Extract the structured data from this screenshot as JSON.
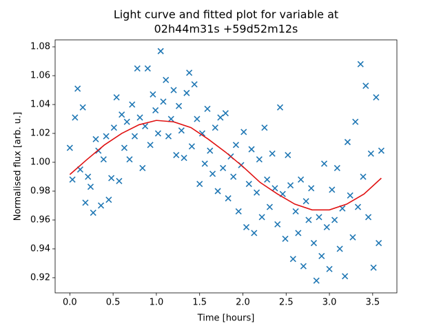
{
  "chart_data": {
    "type": "scatter",
    "title": [
      "Light curve and fitted plot for variable at",
      "02h44m31s +59d52m12s"
    ],
    "xlabel": "Time [hours]",
    "ylabel": "Normalised flux [arb. u.]",
    "xlim": [
      -0.17,
      3.78
    ],
    "ylim": [
      0.9095,
      1.0848
    ],
    "xticks": [
      {
        "value": 0,
        "label": "0.0"
      },
      0.5,
      {
        "value": 1,
        "label": "1.0"
      },
      1.5,
      {
        "value": 2,
        "label": "2.0"
      },
      2.5,
      {
        "value": 3,
        "label": "3.0"
      },
      3.5
    ],
    "yticks": [
      0.92,
      0.94,
      0.96,
      0.98,
      {
        "value": 1,
        "label": "1.00"
      },
      1.02,
      1.04,
      1.06,
      1.08
    ],
    "series": [
      {
        "type": "scatter",
        "marker": "x",
        "color": "#1f77b4",
        "x": [
          0,
          0.03,
          0.06,
          0.09,
          0.12,
          0.15,
          0.18,
          0.21,
          0.24,
          0.27,
          0.3,
          0.33,
          0.36,
          0.39,
          0.42,
          0.45,
          0.48,
          0.51,
          0.54,
          0.57,
          0.6,
          0.63,
          0.66,
          0.69,
          0.72,
          0.75,
          0.78,
          0.81,
          0.84,
          0.87,
          0.9,
          0.93,
          0.96,
          0.99,
          1.02,
          1.05,
          1.08,
          1.11,
          1.14,
          1.17,
          1.2,
          1.23,
          1.26,
          1.29,
          1.32,
          1.35,
          1.38,
          1.41,
          1.44,
          1.47,
          1.5,
          1.53,
          1.56,
          1.59,
          1.62,
          1.65,
          1.68,
          1.71,
          1.74,
          1.77,
          1.8,
          1.83,
          1.86,
          1.89,
          1.92,
          1.95,
          1.98,
          2.01,
          2.04,
          2.07,
          2.1,
          2.13,
          2.16,
          2.19,
          2.22,
          2.25,
          2.28,
          2.31,
          2.34,
          2.37,
          2.4,
          2.43,
          2.46,
          2.49,
          2.52,
          2.55,
          2.58,
          2.61,
          2.64,
          2.67,
          2.7,
          2.73,
          2.76,
          2.79,
          2.82,
          2.85,
          2.88,
          2.91,
          2.94,
          2.97,
          3,
          3.03,
          3.06,
          3.09,
          3.12,
          3.15,
          3.18,
          3.21,
          3.24,
          3.27,
          3.3,
          3.33,
          3.36,
          3.39,
          3.42,
          3.45,
          3.48,
          3.51,
          3.54,
          3.57,
          3.6
        ],
        "values": [
          1.01,
          0.988,
          1.031,
          1.051,
          0.995,
          1.038,
          0.972,
          0.99,
          0.983,
          0.965,
          1.016,
          1.008,
          0.97,
          1.002,
          1.018,
          0.974,
          0.989,
          1.024,
          1.045,
          0.987,
          1.033,
          1.01,
          1.028,
          1.002,
          1.04,
          1.018,
          1.065,
          1.031,
          0.996,
          1.025,
          1.065,
          1.012,
          1.047,
          1.036,
          1.02,
          1.077,
          1.042,
          1.057,
          1.018,
          1.03,
          1.05,
          1.005,
          1.039,
          1.022,
          1.003,
          1.048,
          1.062,
          1.011,
          1.054,
          1.03,
          0.985,
          1.02,
          0.999,
          1.037,
          1.008,
          0.992,
          1.024,
          0.98,
          1.031,
          0.996,
          1.034,
          0.975,
          1.004,
          0.99,
          1.012,
          0.966,
          0.998,
          1.021,
          0.955,
          0.985,
          1.009,
          0.951,
          0.979,
          1.002,
          0.962,
          1.024,
          0.988,
          0.969,
          1.006,
          0.982,
          0.957,
          1.038,
          0.978,
          0.947,
          1.005,
          0.984,
          0.933,
          0.966,
          0.951,
          0.988,
          0.928,
          0.973,
          0.96,
          0.982,
          0.944,
          0.918,
          0.962,
          0.935,
          0.999,
          0.955,
          0.926,
          0.981,
          0.96,
          0.996,
          0.94,
          0.968,
          0.921,
          1.014,
          0.977,
          0.948,
          1.028,
          0.969,
          1.068,
          0.99,
          1.053,
          0.962,
          1.006,
          0.927,
          1.045,
          0.944,
          1.008
        ]
      },
      {
        "type": "line",
        "color": "#e01010",
        "x": [
          0,
          0.2,
          0.4,
          0.6,
          0.8,
          1,
          1.2,
          1.4,
          1.6,
          1.8,
          2,
          2.2,
          2.4,
          2.6,
          2.8,
          3,
          3.2,
          3.4,
          3.6
        ],
        "values": [
          0.9915,
          1.002,
          1.012,
          1.02,
          1.026,
          1.029,
          1.028,
          1.024,
          1.016,
          1.007,
          0.997,
          0.986,
          0.978,
          0.971,
          0.967,
          0.967,
          0.971,
          0.978,
          0.989
        ]
      }
    ]
  }
}
